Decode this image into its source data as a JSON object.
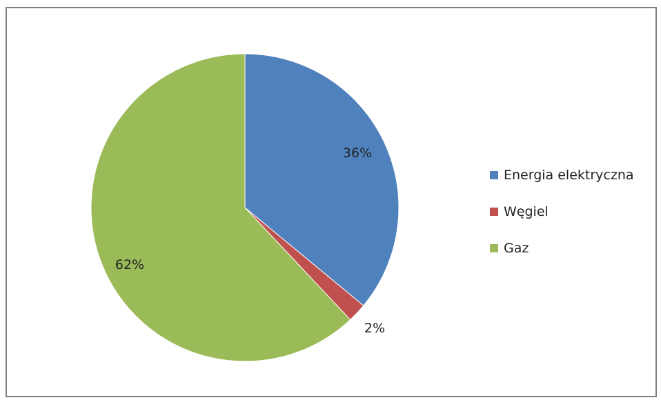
{
  "chart_data": {
    "type": "pie",
    "title": "",
    "slices": [
      {
        "name": "Energia elektryczna",
        "value": 36,
        "label": "36%",
        "color": "#4F81BD"
      },
      {
        "name": "Węgiel",
        "value": 2,
        "label": "2%",
        "color": "#C0504D"
      },
      {
        "name": "Gaz",
        "value": 62,
        "label": "62%",
        "color": "#9BBB59"
      }
    ],
    "legend_position": "right",
    "start_angle_deg": 0,
    "direction": "clockwise"
  }
}
